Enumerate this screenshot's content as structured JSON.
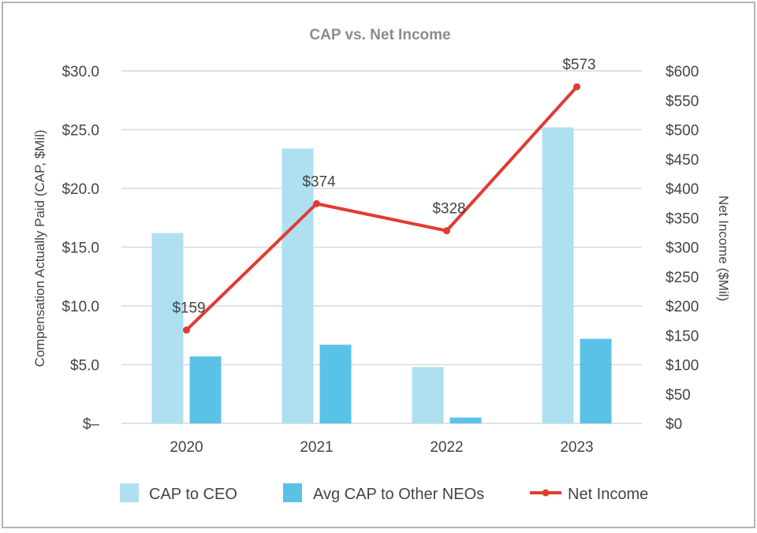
{
  "chart_data": {
    "type": "bar",
    "title": "CAP vs. Net Income",
    "categories": [
      "2020",
      "2021",
      "2022",
      "2023"
    ],
    "ylabel": "Compensation Actually Paid (CAP, $Mil)",
    "y2label": "Net Income ($Mil)",
    "ylim": [
      0,
      30
    ],
    "y2lim": [
      0,
      600
    ],
    "y_ticks": [
      0,
      5,
      10,
      15,
      20,
      25,
      30
    ],
    "y_tick_labels": [
      "$–",
      "$5.0",
      "$10.0",
      "$15.0",
      "$20.0",
      "$25.0",
      "$30.0"
    ],
    "y2_ticks": [
      0,
      50,
      100,
      150,
      200,
      250,
      300,
      350,
      400,
      450,
      500,
      550,
      600
    ],
    "y2_tick_labels": [
      "$0",
      "$50",
      "$100",
      "$150",
      "$200",
      "$250",
      "$300",
      "$350",
      "$400",
      "$450",
      "$500",
      "$550",
      "$600"
    ],
    "grid": true,
    "legend_position": "bottom",
    "series": [
      {
        "name": "CAP to CEO",
        "kind": "bar",
        "axis": "left",
        "color": "#aee0f2",
        "values": [
          16.2,
          23.4,
          4.8,
          25.2
        ]
      },
      {
        "name": "Avg CAP to Other NEOs",
        "kind": "bar",
        "axis": "left",
        "color": "#5bc2e7",
        "values": [
          5.7,
          6.7,
          0.5,
          7.2
        ]
      },
      {
        "name": "Net Income",
        "kind": "line",
        "axis": "right",
        "color": "#e03c31",
        "values": [
          159,
          374,
          328,
          573
        ],
        "data_labels": [
          "$159",
          "$374",
          "$328",
          "$573"
        ]
      }
    ]
  }
}
